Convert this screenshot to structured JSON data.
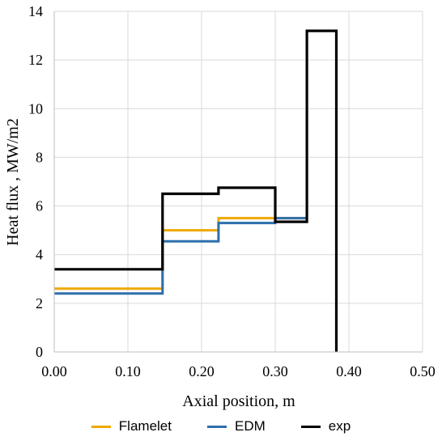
{
  "chart_data": {
    "type": "line",
    "xlabel": "Axial position, m",
    "ylabel": "Heat flux , MW/m2",
    "xlim": [
      0,
      0.5
    ],
    "ylim": [
      0,
      14
    ],
    "x_ticks": [
      "0.00",
      "0.10",
      "0.20",
      "0.30",
      "0.40",
      "0.50"
    ],
    "y_ticks": [
      "0",
      "2",
      "4",
      "6",
      "8",
      "10",
      "12",
      "14"
    ],
    "grid": true,
    "legend_position": "bottom",
    "series": [
      {
        "name": "Flamelet",
        "color": "#f0a800",
        "x": [
          0.0,
          0.147,
          0.147,
          0.223,
          0.223,
          0.3,
          0.3,
          0.343
        ],
        "y": [
          2.6,
          2.6,
          5.0,
          5.0,
          5.5,
          5.5,
          5.5,
          5.5
        ]
      },
      {
        "name": "EDM",
        "color": "#2e6fad",
        "x": [
          0.0,
          0.147,
          0.147,
          0.223,
          0.223,
          0.3,
          0.3,
          0.343
        ],
        "y": [
          2.4,
          2.4,
          4.55,
          4.55,
          5.3,
          5.3,
          5.5,
          5.5
        ]
      },
      {
        "name": "exp",
        "color": "#000000",
        "x": [
          0.0,
          0.147,
          0.147,
          0.223,
          0.223,
          0.3,
          0.3,
          0.343,
          0.343,
          0.383,
          0.383
        ],
        "y": [
          3.4,
          3.4,
          6.5,
          6.5,
          6.75,
          6.75,
          5.35,
          5.35,
          13.2,
          13.2,
          0
        ]
      }
    ]
  }
}
